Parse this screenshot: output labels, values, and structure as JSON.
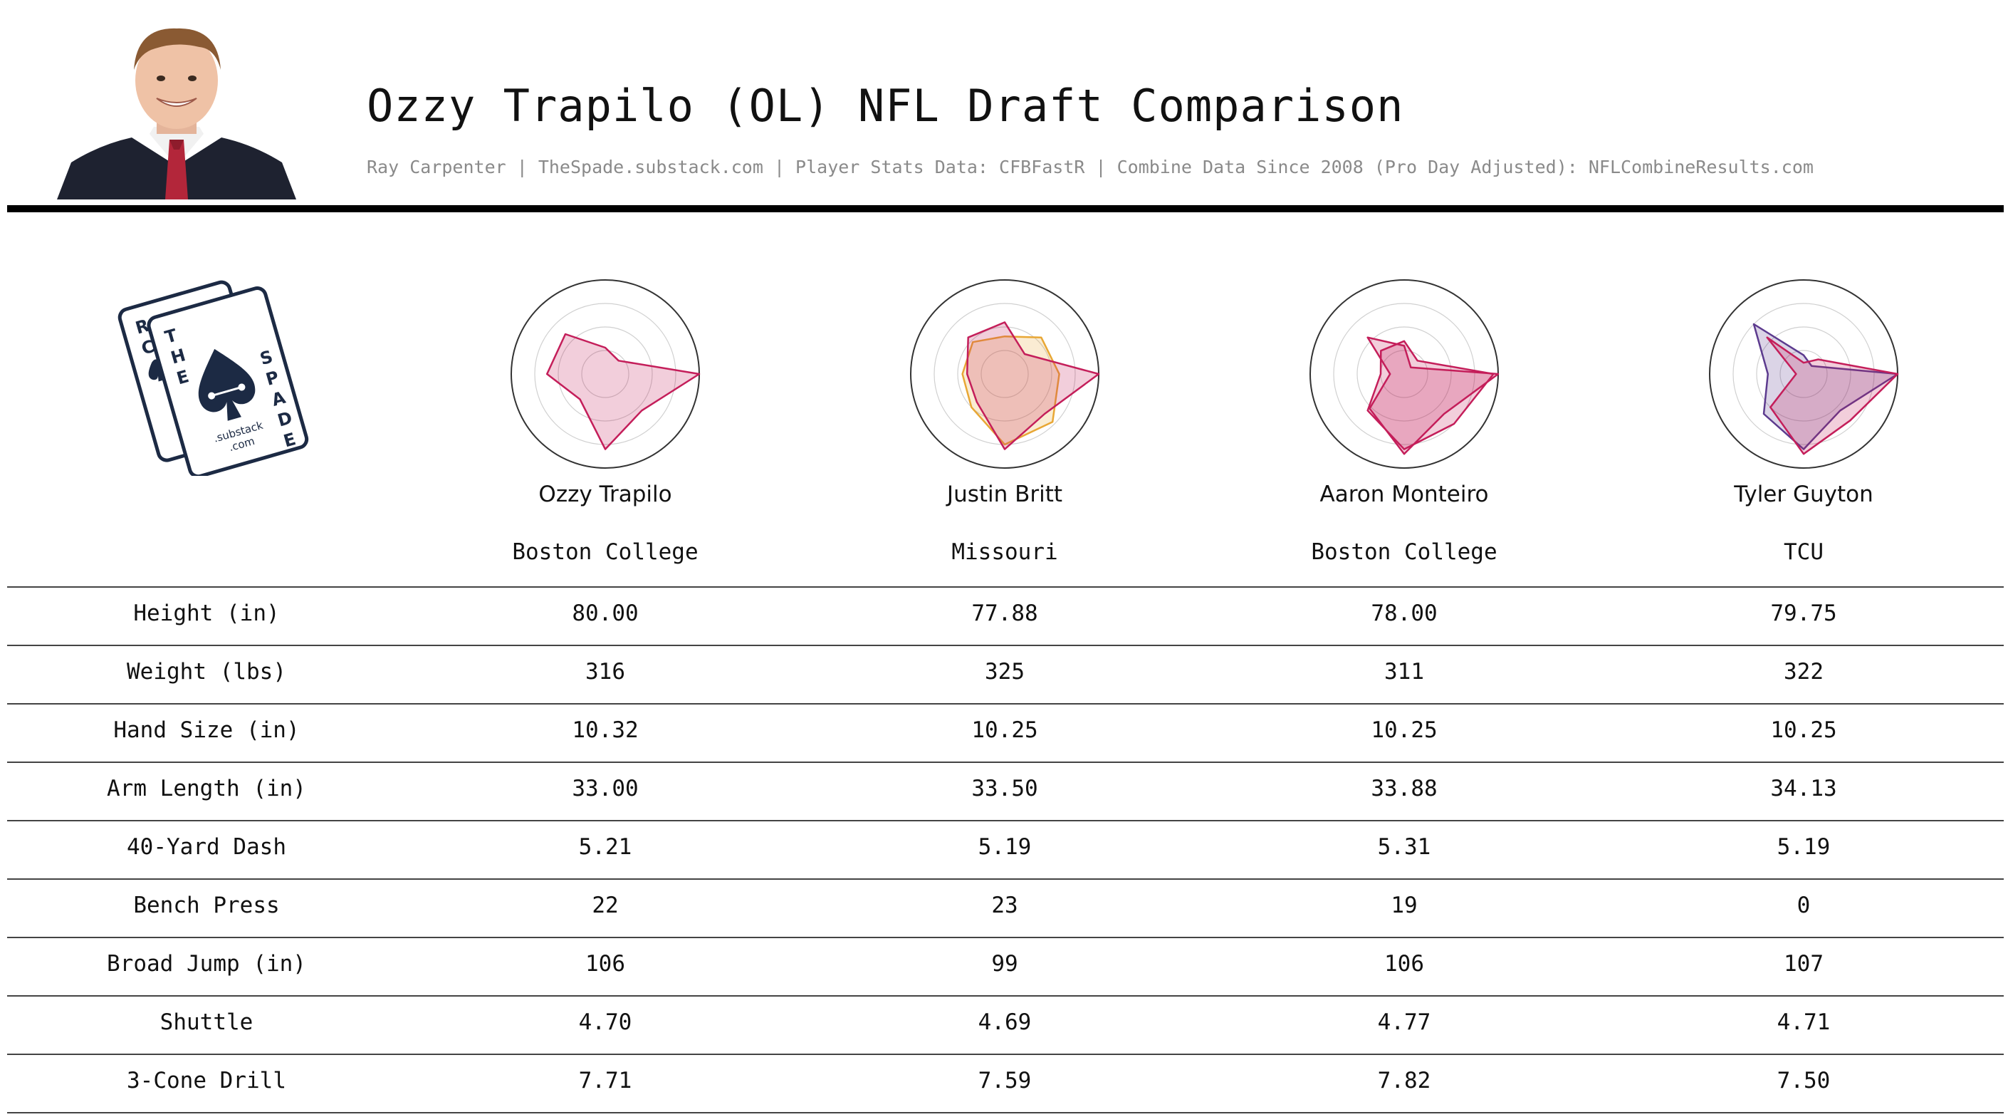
{
  "header": {
    "title": "Ozzy Trapilo (OL) NFL Draft Comparison",
    "subtitle": "Ray Carpenter | TheSpade.substack.com | Player Stats Data: CFBFastR | Combine Data Since 2008 (Pro Day Adjusted): NFLCombineResults.com"
  },
  "logo": {
    "letters": [
      "T",
      "H",
      "E",
      "S",
      "P",
      "A",
      "D",
      "E",
      "R",
      "C"
    ],
    "substack_text": ".substack",
    "com_text": ".com"
  },
  "chart_data": {
    "type": "radar",
    "rings": 4,
    "axes_count": 8,
    "axis_start_deg": 0,
    "ylim": [
      0,
      1
    ],
    "players": [
      {
        "name": "Ozzy Trapilo",
        "school": "Boston College",
        "series": [
          {
            "color": "#c41e5a",
            "values": [
              1.0,
              0.55,
              0.8,
              0.38,
              0.62,
              0.6,
              0.28,
              0.2
            ]
          }
        ]
      },
      {
        "name": "Justin Britt",
        "school": "Missouri",
        "series": [
          {
            "color": "#e8a735",
            "values": [
              0.58,
              0.72,
              0.75,
              0.5,
              0.45,
              0.48,
              0.4,
              0.55
            ]
          },
          {
            "color": "#c41e5a",
            "values": [
              1.0,
              0.6,
              0.8,
              0.42,
              0.4,
              0.55,
              0.55,
              0.3
            ]
          }
        ]
      },
      {
        "name": "Aaron Monteiro",
        "school": "Boston College",
        "series": [
          {
            "color": "#c41e5a",
            "values": [
              0.95,
              0.75,
              0.8,
              0.55,
              0.25,
              0.35,
              0.35,
              0.2
            ]
          },
          {
            "color": "#c41e5a",
            "values": [
              1.0,
              0.6,
              0.85,
              0.52,
              0.15,
              0.55,
              0.3,
              0.1
            ]
          }
        ]
      },
      {
        "name": "Tyler Guyton",
        "school": "TCU",
        "series": [
          {
            "color": "#5c3a8e",
            "values": [
              1.0,
              0.55,
              0.8,
              0.6,
              0.38,
              0.75,
              0.2,
              0.12
            ]
          },
          {
            "color": "#c41e5a",
            "values": [
              1.0,
              0.7,
              0.85,
              0.5,
              0.08,
              0.55,
              0.12,
              0.22
            ]
          }
        ]
      }
    ]
  },
  "table": {
    "rows": [
      {
        "label": "Height (in)",
        "values": [
          "80.00",
          "77.88",
          "78.00",
          "79.75"
        ]
      },
      {
        "label": "Weight (lbs)",
        "values": [
          "316",
          "325",
          "311",
          "322"
        ]
      },
      {
        "label": "Hand Size (in)",
        "values": [
          "10.32",
          "10.25",
          "10.25",
          "10.25"
        ]
      },
      {
        "label": "Arm Length (in)",
        "values": [
          "33.00",
          "33.50",
          "33.88",
          "34.13"
        ]
      },
      {
        "label": "40-Yard Dash",
        "values": [
          "5.21",
          "5.19",
          "5.31",
          "5.19"
        ]
      },
      {
        "label": "Bench Press",
        "values": [
          "22",
          "23",
          "19",
          "0"
        ]
      },
      {
        "label": "Broad Jump (in)",
        "values": [
          "106",
          "99",
          "106",
          "107"
        ]
      },
      {
        "label": "Shuttle",
        "values": [
          "4.70",
          "4.69",
          "4.77",
          "4.71"
        ]
      },
      {
        "label": "3-Cone Drill",
        "values": [
          "7.71",
          "7.59",
          "7.82",
          "7.50"
        ]
      }
    ]
  },
  "colors": {
    "accent": "#c41e5a",
    "gold": "#e8a735",
    "purple": "#5c3a8e",
    "navy": "#1c2a44",
    "subtitle_gray": "#8a8a8a"
  }
}
